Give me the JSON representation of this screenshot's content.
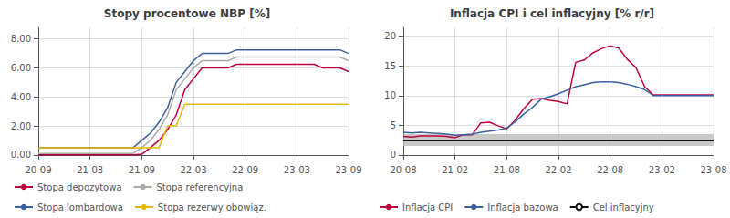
{
  "chart_data": [
    {
      "type": "line",
      "title": "Stopy procentowe NBP [%]",
      "categories": [
        "20-09",
        null,
        null,
        null,
        null,
        null,
        "21-03",
        null,
        null,
        null,
        null,
        null,
        "21-09",
        null,
        null,
        null,
        null,
        null,
        "22-03",
        null,
        null,
        null,
        null,
        null,
        "22-09",
        null,
        null,
        null,
        null,
        null,
        "23-03",
        null,
        null,
        null,
        null,
        null,
        "23-09"
      ],
      "series": [
        {
          "name": "Stopa depozytowa",
          "color": "#c0003c",
          "values": [
            0.0,
            0.0,
            0.0,
            0.0,
            0.0,
            0.0,
            0.0,
            0.0,
            0.0,
            0.0,
            0.0,
            0.0,
            0.05,
            0.5,
            1.0,
            1.75,
            2.75,
            4.5,
            5.25,
            6.0,
            6.0,
            6.0,
            6.0,
            6.25,
            6.25,
            6.25,
            6.25,
            6.25,
            6.25,
            6.25,
            6.25,
            6.25,
            6.25,
            6.0,
            6.0,
            6.0,
            5.75
          ]
        },
        {
          "name": "Stopa referencyjna",
          "color": "#aaaaaa",
          "values": [
            0.1,
            0.1,
            0.1,
            0.1,
            0.1,
            0.1,
            0.1,
            0.1,
            0.1,
            0.1,
            0.1,
            0.1,
            0.5,
            1.0,
            1.75,
            2.75,
            4.5,
            5.25,
            6.0,
            6.5,
            6.5,
            6.5,
            6.5,
            6.75,
            6.75,
            6.75,
            6.75,
            6.75,
            6.75,
            6.75,
            6.75,
            6.75,
            6.75,
            6.75,
            6.75,
            6.75,
            6.5
          ]
        },
        {
          "name": "Stopa lombardowa",
          "color": "#3c5fa0",
          "values": [
            0.5,
            0.5,
            0.5,
            0.5,
            0.5,
            0.5,
            0.5,
            0.5,
            0.5,
            0.5,
            0.5,
            0.5,
            1.0,
            1.5,
            2.25,
            3.25,
            5.0,
            5.75,
            6.5,
            7.0,
            7.0,
            7.0,
            7.0,
            7.25,
            7.25,
            7.25,
            7.25,
            7.25,
            7.25,
            7.25,
            7.25,
            7.25,
            7.25,
            7.25,
            7.25,
            7.25,
            7.0
          ]
        },
        {
          "name": "Stopa rezerwy obowiąz.",
          "color": "#e6b800",
          "values": [
            0.5,
            0.5,
            0.5,
            0.5,
            0.5,
            0.5,
            0.5,
            0.5,
            0.5,
            0.5,
            0.5,
            0.5,
            0.5,
            0.5,
            0.5,
            2.0,
            2.0,
            3.5,
            3.5,
            3.5,
            3.5,
            3.5,
            3.5,
            3.5,
            3.5,
            3.5,
            3.5,
            3.5,
            3.5,
            3.5,
            3.5,
            3.5,
            3.5,
            3.5,
            3.5,
            3.5,
            3.5
          ]
        }
      ],
      "ylim": [
        -0.2,
        8.8
      ],
      "yticks": [
        {
          "value": 0.0,
          "label": "0.00"
        },
        {
          "value": 2.0,
          "label": "2.00"
        },
        {
          "value": 4.0,
          "label": "4.00"
        },
        {
          "value": 6.0,
          "label": "6.00"
        },
        {
          "value": 8.0,
          "label": "8.00"
        }
      ],
      "grid": true,
      "legend": "bottom"
    },
    {
      "type": "line",
      "title": "Inflacja CPI i cel inflacyjny [% r/r]",
      "categories": [
        "20-08",
        null,
        null,
        null,
        null,
        null,
        "21-02",
        null,
        null,
        null,
        null,
        null,
        "21-08",
        null,
        null,
        null,
        null,
        null,
        "22-02",
        null,
        null,
        null,
        null,
        null,
        "22-08",
        null,
        null,
        null,
        null,
        null,
        "23-02",
        null,
        null,
        null,
        null,
        null,
        "23-08"
      ],
      "series": [
        {
          "name": "Inflacja CPI",
          "color": "#c0003c",
          "values": [
            3.1,
            3.0,
            3.2,
            3.2,
            3.2,
            3.1,
            2.9,
            3.4,
            3.4,
            5.4,
            5.5,
            4.9,
            4.4,
            5.9,
            7.8,
            9.4,
            9.5,
            9.2,
            9.0,
            8.6,
            15.6,
            16.0,
            17.2,
            17.9,
            18.4,
            18.0,
            16.1,
            14.7,
            11.5,
            10.1,
            10.1,
            10.1,
            10.1,
            10.1,
            10.1,
            10.1,
            10.1
          ]
        },
        {
          "name": "Inflacja bazowa",
          "color": "#3c5fa0",
          "values": [
            3.8,
            3.7,
            3.8,
            3.7,
            3.6,
            3.5,
            3.3,
            3.4,
            3.5,
            3.8,
            4.0,
            4.2,
            4.5,
            5.6,
            6.9,
            8.0,
            9.4,
            9.8,
            10.3,
            10.9,
            11.5,
            11.8,
            12.2,
            12.3,
            12.3,
            12.2,
            11.9,
            11.5,
            11.0,
            10.0,
            10.0,
            10.0,
            10.0,
            10.0,
            10.0,
            10.0,
            10.0
          ]
        }
      ],
      "target_line": {
        "name": "Cel inflacyjny",
        "color": "#111111",
        "value": 2.5
      },
      "target_band": {
        "low": 1.5,
        "high": 3.5,
        "color": "#bbbbbb"
      },
      "ylim": [
        -0.5,
        21.5
      ],
      "yticks": [
        0,
        5,
        10,
        15,
        20
      ],
      "grid": true,
      "legend": "bottom"
    }
  ]
}
